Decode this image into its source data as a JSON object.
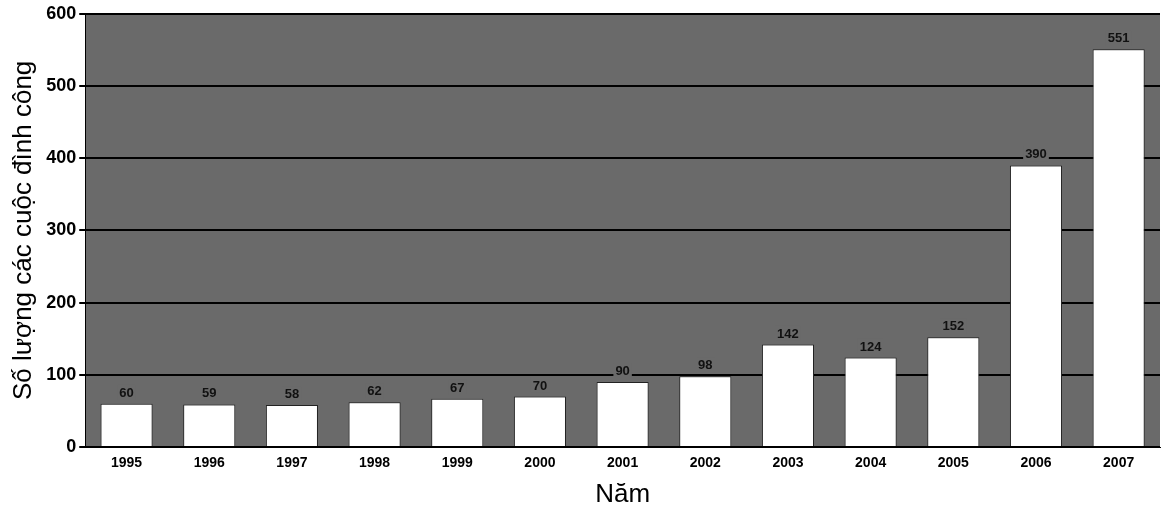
{
  "chart_data": {
    "type": "bar",
    "xlabel": "Năm",
    "ylabel": "Số lượng các cuộc đình công",
    "categories": [
      "1995",
      "1996",
      "1997",
      "1998",
      "1999",
      "2000",
      "2001",
      "2002",
      "2003",
      "2004",
      "2005",
      "2006",
      "2007"
    ],
    "values": [
      60,
      59,
      58,
      62,
      67,
      70,
      90,
      98,
      142,
      124,
      152,
      390,
      551
    ],
    "color": "#ffffff",
    "ylim": [
      0,
      600
    ],
    "yticks": [
      0,
      100,
      200,
      300,
      400,
      500,
      600
    ],
    "grid": "y",
    "data_labels": true,
    "legend": false
  }
}
